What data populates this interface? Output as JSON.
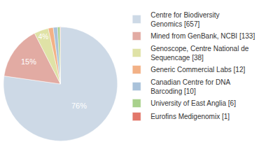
{
  "chart_data": {
    "type": "pie",
    "categories": [
      "Centre for Biodiversity Genomics [657]",
      "Mined from GenBank, NCBI [133]",
      "Genoscope, Centre National de Sequencage [38]",
      "Generic Commercial Labs [12]",
      "Canadian Centre for DNA Barcoding [10]",
      "University of East Anglia [6]",
      "Eurofins Medigenomix [1]"
    ],
    "values": [
      76,
      15,
      4,
      1.4,
      1.2,
      0.7,
      0.1
    ],
    "value_labels": [
      "76%",
      "15%",
      "4%",
      null,
      null,
      null,
      null
    ],
    "data_labels": true,
    "colors": [
      "#cdd9e6",
      "#e2aba3",
      "#dfe2a6",
      "#f2b186",
      "#a9c2da",
      "#a8d18c",
      "#e2776a"
    ],
    "legend": "right"
  }
}
